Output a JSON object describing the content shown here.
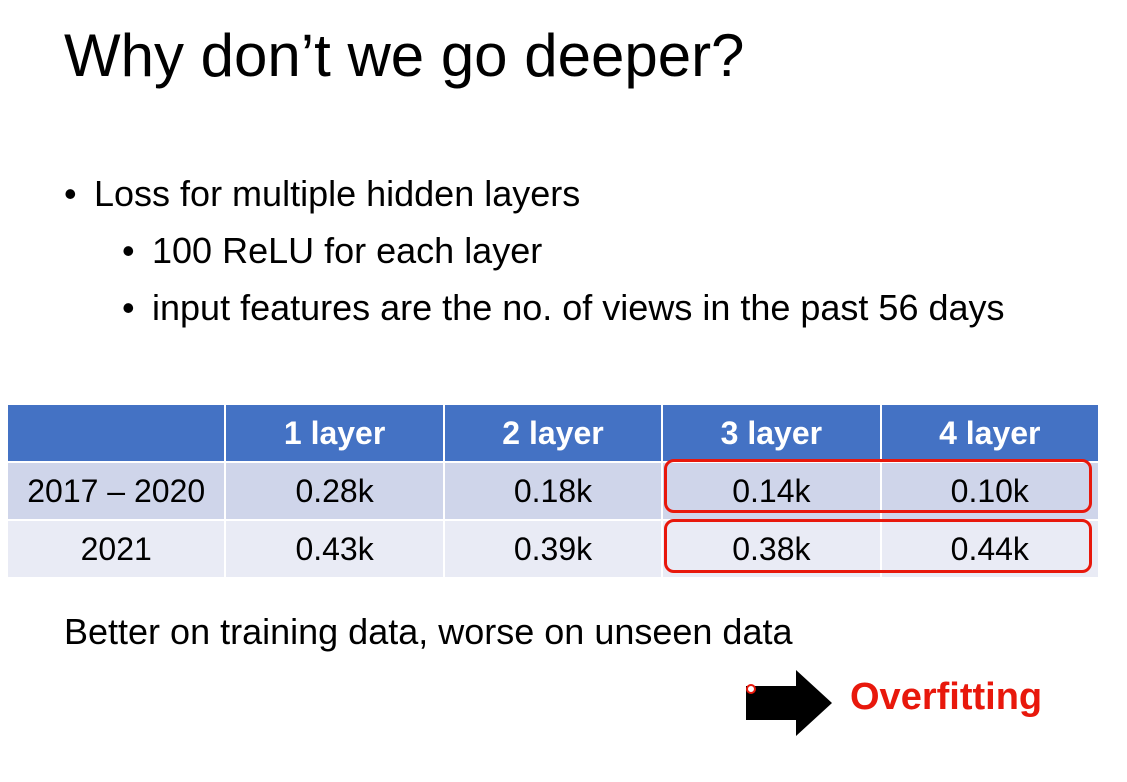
{
  "slide": {
    "title": "Why don’t we go deeper?",
    "bullet_main": "Loss for multiple hidden layers",
    "sub_bullets": [
      "100 ReLU for each layer",
      "input features are the no. of views in the past 56 days"
    ],
    "table": {
      "headers": [
        "",
        "1 layer",
        "2 layer",
        "3 layer",
        "4 layer"
      ],
      "rows": [
        [
          "2017 – 2020",
          "0.28k",
          "0.18k",
          "0.14k",
          "0.10k"
        ],
        [
          "2021",
          "0.43k",
          "0.39k",
          "0.38k",
          "0.44k"
        ]
      ]
    },
    "conclusion": "Better on training data, worse on unseen data",
    "result_label": "Overfitting",
    "colors": {
      "header_bg": "#4472c4",
      "row1_bg": "#cfd5ea",
      "row2_bg": "#e9ebf5",
      "highlight": "#e8180c"
    }
  }
}
